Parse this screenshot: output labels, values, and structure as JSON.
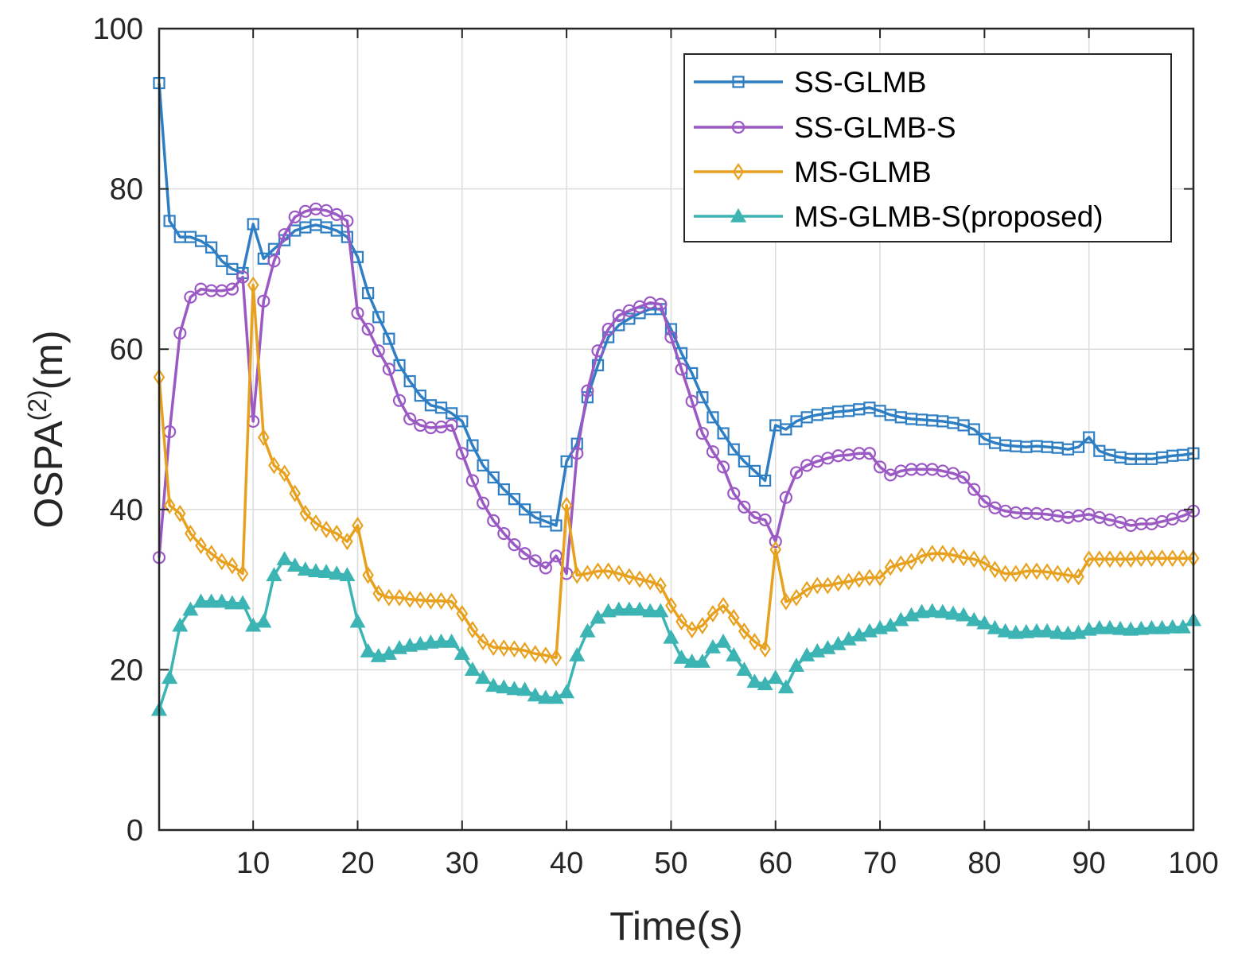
{
  "chart_data": {
    "type": "line",
    "title": "",
    "xlabel": "Time(s)",
    "ylabel": "OSPA",
    "ylabel_superscript": "(2)",
    "ylabel_unit": "(m)",
    "xlim": [
      1,
      100
    ],
    "ylim": [
      0,
      100
    ],
    "xticks": [
      10,
      20,
      30,
      40,
      50,
      60,
      70,
      80,
      90,
      100
    ],
    "yticks": [
      0,
      20,
      40,
      60,
      80,
      100
    ],
    "grid": true,
    "legend_position": "top-right",
    "x_start": 1,
    "x_step": 1,
    "series": [
      {
        "name": "SS-GLMB",
        "color": "#2e7ec4",
        "marker": "square",
        "values": [
          93.2,
          76,
          74,
          74,
          73.5,
          72.7,
          71,
          70,
          69.5,
          75.6,
          71.3,
          72.5,
          73.6,
          74.8,
          75.2,
          75.5,
          75.2,
          74.8,
          74,
          71.5,
          67,
          64,
          61.3,
          58,
          56,
          54.2,
          53,
          52.7,
          52,
          51,
          48,
          45.5,
          44,
          42.5,
          41.3,
          40,
          39,
          38.5,
          38,
          46,
          48.2,
          54,
          58,
          61.5,
          63,
          63.8,
          64.5,
          65,
          65,
          62.5,
          59.5,
          57,
          54,
          51.5,
          49.5,
          47.5,
          46,
          44.8,
          43.6,
          50.5,
          50,
          51,
          51.5,
          51.8,
          52,
          52.2,
          52.3,
          52.5,
          52.7,
          52.3,
          51.8,
          51.5,
          51.3,
          51.2,
          51.1,
          51,
          50.8,
          50.5,
          50,
          48.8,
          48.3,
          48,
          47.9,
          47.8,
          47.9,
          47.8,
          47.7,
          47.5,
          47.8,
          49,
          47.3,
          46.8,
          46.5,
          46.3,
          46.3,
          46.3,
          46.5,
          46.7,
          46.8,
          47
        ]
      },
      {
        "name": "SS-GLMB-S",
        "color": "#9b59c4",
        "marker": "circle",
        "values": [
          34,
          49.7,
          62,
          66.5,
          67.5,
          67.3,
          67.3,
          67.5,
          69,
          51,
          66,
          71,
          74.3,
          76.5,
          77.2,
          77.5,
          77.3,
          76.8,
          76,
          64.5,
          62.5,
          59.8,
          57.5,
          53.6,
          51.3,
          50.5,
          50.2,
          50.3,
          50.5,
          47,
          43.6,
          40.8,
          38.6,
          37,
          35.6,
          34.5,
          33.6,
          32.7,
          34.2,
          32,
          47,
          54.8,
          59.8,
          62.5,
          64.2,
          64.8,
          65.3,
          65.8,
          65.6,
          61.5,
          57.5,
          53.5,
          49.5,
          47.2,
          45.3,
          42,
          40.3,
          39,
          38.7,
          36,
          41.5,
          44.6,
          45.5,
          46,
          46.4,
          46.7,
          46.8,
          47,
          47,
          45.3,
          44.3,
          44.8,
          45,
          45,
          45,
          44.8,
          44.5,
          44,
          42.5,
          41,
          40.2,
          39.8,
          39.6,
          39.5,
          39.5,
          39.4,
          39.2,
          39,
          39.2,
          39.4,
          39,
          38.7,
          38.4,
          38,
          38.2,
          38.2,
          38.5,
          38.8,
          39.2,
          39.8
        ]
      },
      {
        "name": "MS-GLMB",
        "color": "#e8a11e",
        "marker": "diamond",
        "values": [
          56.5,
          40.5,
          39.5,
          37,
          35.5,
          34.5,
          33.5,
          33,
          32,
          68,
          49,
          45.5,
          44.5,
          42,
          39.5,
          38.3,
          37.5,
          37,
          36,
          38,
          31.8,
          29.5,
          29,
          29,
          28.8,
          28.7,
          28.6,
          28.6,
          28.5,
          27,
          25,
          23.5,
          22.8,
          22.7,
          22.6,
          22.4,
          22,
          21.8,
          21.5,
          40.5,
          31.8,
          32,
          32.3,
          32.3,
          32,
          31.6,
          31.3,
          31,
          30.5,
          28,
          26,
          25,
          25.5,
          27,
          28,
          26.5,
          24.8,
          23.5,
          22.6,
          35,
          28.5,
          29,
          30,
          30.5,
          30.5,
          30.8,
          31,
          31.3,
          31.5,
          31.5,
          32.8,
          33.2,
          33.5,
          34.2,
          34.5,
          34.5,
          34.3,
          34,
          33.8,
          33.3,
          32.5,
          32,
          32,
          32.3,
          32.3,
          32.2,
          32,
          31.8,
          31.6,
          33.8,
          33.8,
          33.8,
          33.8,
          33.8,
          33.9,
          33.9,
          33.9,
          33.9,
          33.9,
          33.9
        ]
      },
      {
        "name": "MS-GLMB-S(proposed)",
        "color": "#3cb4b4",
        "marker": "triangle",
        "values": [
          15,
          19,
          25.5,
          27.5,
          28.5,
          28.5,
          28.5,
          28.3,
          28.3,
          25.5,
          26,
          31.8,
          33.8,
          33,
          32.5,
          32.3,
          32.2,
          32,
          31.8,
          26,
          22.3,
          21.7,
          22,
          22.7,
          23,
          23.2,
          23.4,
          23.5,
          23.5,
          22,
          20,
          19,
          18,
          17.8,
          17.6,
          17.5,
          16.8,
          16.5,
          16.5,
          17.2,
          21.8,
          24.8,
          26.5,
          27.3,
          27.5,
          27.5,
          27.5,
          27.3,
          27.3,
          24,
          21.5,
          21,
          21,
          22.8,
          23.5,
          21.8,
          20,
          18.5,
          18.2,
          19,
          17.8,
          20.5,
          21.8,
          22.3,
          22.7,
          23.2,
          23.8,
          24.3,
          24.8,
          25.2,
          25.5,
          26.2,
          26.8,
          27.2,
          27.3,
          27.2,
          27,
          26.8,
          26.2,
          25.8,
          25.2,
          24.8,
          24.6,
          24.7,
          24.8,
          24.8,
          24.6,
          24.5,
          24.6,
          25,
          25.2,
          25.2,
          25.1,
          25,
          25.1,
          25.2,
          25.2,
          25.3,
          25.3,
          26.2
        ]
      }
    ]
  }
}
